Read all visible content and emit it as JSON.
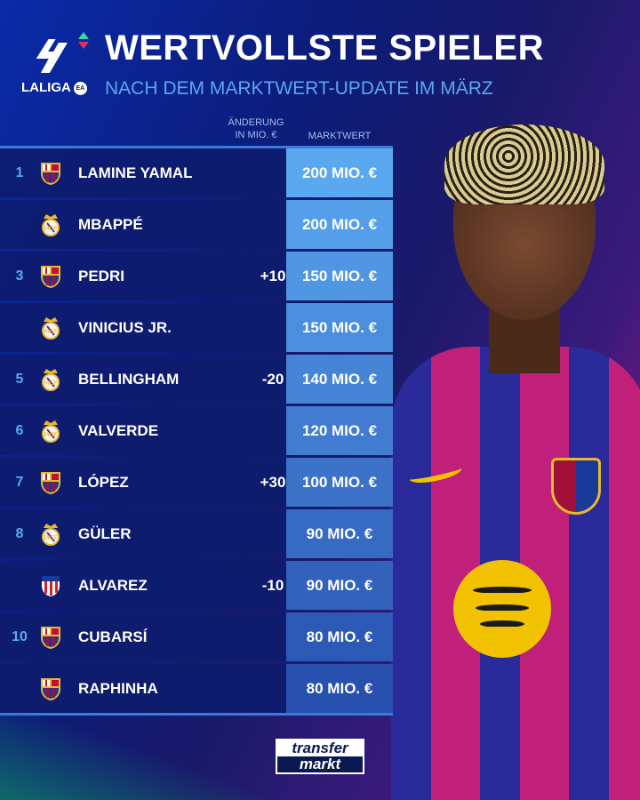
{
  "header": {
    "title": "WERTVOLLSTE SPIELER",
    "subtitle": "NACH DEM MARKTWERT-UPDATE IM MÄRZ",
    "league_logo_text": "LALIGA",
    "ea_text": "EA"
  },
  "columns": {
    "change": "ÄNDERUNG\nIN MIO. €",
    "market_value": "MARKTWERT"
  },
  "colors": {
    "accent": "#5aa8f0",
    "row_bg": "#0e1c6e",
    "barcelona": "#a0103a",
    "real_madrid": "#f0f0f0",
    "atletico": "#d02030"
  },
  "rows": [
    {
      "rank": "1",
      "club": "barcelona",
      "name": "LAMINE YAMAL",
      "change": "",
      "value": "200 MIO. €"
    },
    {
      "rank": "",
      "club": "real-madrid",
      "name": "MBAPPÉ",
      "change": "",
      "value": "200 MIO. €"
    },
    {
      "rank": "3",
      "club": "barcelona",
      "name": "PEDRI",
      "change": "+10",
      "value": "150 MIO. €"
    },
    {
      "rank": "",
      "club": "real-madrid",
      "name": "VINICIUS JR.",
      "change": "",
      "value": "150 MIO. €"
    },
    {
      "rank": "5",
      "club": "real-madrid",
      "name": "BELLINGHAM",
      "change": "-20",
      "value": "140 MIO. €"
    },
    {
      "rank": "6",
      "club": "real-madrid",
      "name": "VALVERDE",
      "change": "",
      "value": "120 MIO. €"
    },
    {
      "rank": "7",
      "club": "barcelona",
      "name": "LÓPEZ",
      "change": "+30",
      "value": "100 MIO. €"
    },
    {
      "rank": "8",
      "club": "real-madrid",
      "name": "GÜLER",
      "change": "",
      "value": "90 MIO. €"
    },
    {
      "rank": "",
      "club": "atletico",
      "name": "ALVAREZ",
      "change": "-10",
      "value": "90 MIO. €"
    },
    {
      "rank": "10",
      "club": "barcelona",
      "name": "CUBARSÍ",
      "change": "",
      "value": "80 MIO. €"
    },
    {
      "rank": "",
      "club": "barcelona",
      "name": "RAPHINHA",
      "change": "",
      "value": "80 MIO. €"
    }
  ],
  "footer": {
    "brand_top": "transfer",
    "brand_bottom": "markt"
  }
}
